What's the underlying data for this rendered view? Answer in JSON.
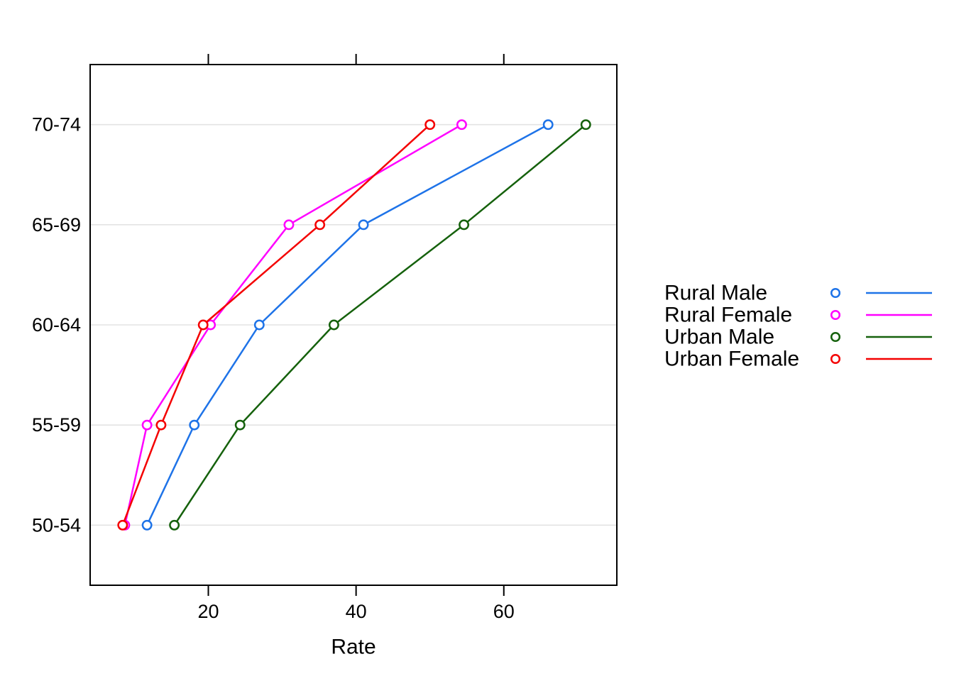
{
  "chart_data": {
    "type": "line",
    "variant": "horizontal-dotplot-with-lines",
    "title": "",
    "xlabel": "Rate",
    "ylabel": "",
    "categories": [
      "50-54",
      "55-59",
      "60-64",
      "65-69",
      "70-74"
    ],
    "series": [
      {
        "name": "Rural Male",
        "color": "#1E73E8",
        "values": [
          11.7,
          18.1,
          26.9,
          41.0,
          66.0
        ]
      },
      {
        "name": "Rural Female",
        "color": "#FF00FF",
        "values": [
          8.7,
          11.7,
          20.3,
          30.9,
          54.3
        ]
      },
      {
        "name": "Urban Male",
        "color": "#15610C",
        "values": [
          15.4,
          24.3,
          37.0,
          54.6,
          71.1
        ]
      },
      {
        "name": "Urban Female",
        "color": "#F40000",
        "values": [
          8.4,
          13.6,
          19.3,
          35.1,
          50.0
        ]
      }
    ],
    "x_ticks": [
      "20",
      "40",
      "60"
    ],
    "x_tick_values": [
      20,
      40,
      60
    ],
    "xlim": [
      4.0,
      75.3
    ],
    "grid": "horizontal-light-gray",
    "legend_position": "right",
    "marker": "open-circle",
    "colors": {
      "axis": "#000000",
      "gridline": "#E3E3E3",
      "background": "#FFFFFF",
      "marker_fill": "#FFFFFF"
    }
  }
}
